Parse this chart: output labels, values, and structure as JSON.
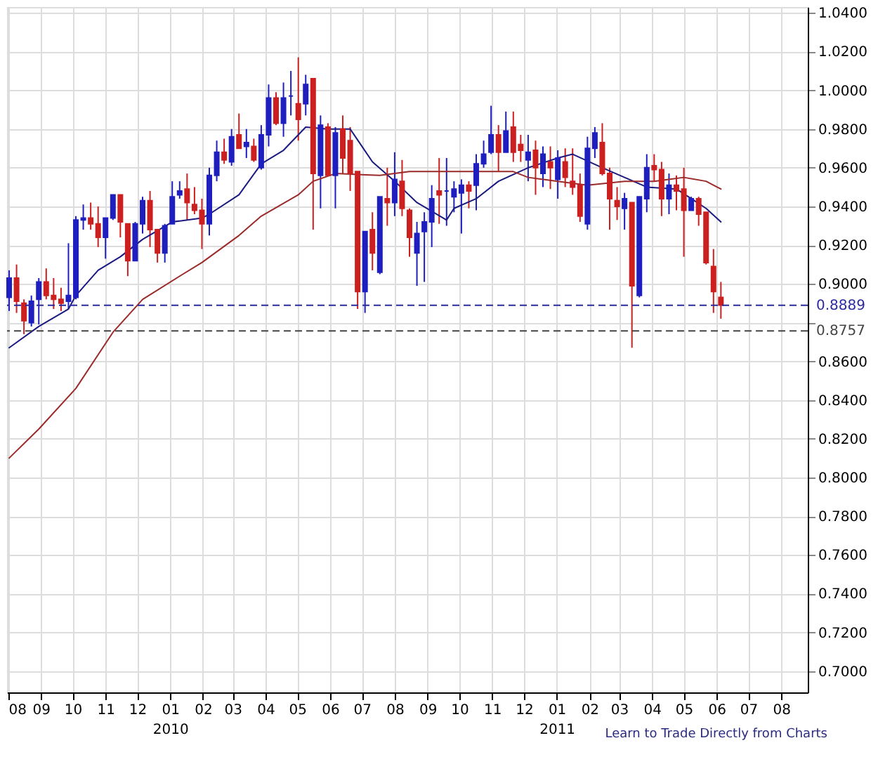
{
  "chart_data": {
    "type": "candlestick",
    "x": [
      "2009-08-02",
      "2009-08-09",
      "2009-08-16",
      "2009-08-23",
      "2009-08-30",
      "2009-09-06",
      "2009-09-13",
      "2009-09-20",
      "2009-09-27",
      "2009-10-04",
      "2009-10-11",
      "2009-10-18",
      "2009-10-25",
      "2009-11-01",
      "2009-11-08",
      "2009-11-15",
      "2009-11-22",
      "2009-11-29",
      "2009-12-06",
      "2009-12-13",
      "2009-12-20",
      "2009-12-27",
      "2010-01-03",
      "2010-01-10",
      "2010-01-17",
      "2010-01-24",
      "2010-01-31",
      "2010-02-07",
      "2010-02-14",
      "2010-02-21",
      "2010-02-28",
      "2010-03-07",
      "2010-03-14",
      "2010-03-21",
      "2010-03-28",
      "2010-04-04",
      "2010-04-11",
      "2010-04-18",
      "2010-04-25",
      "2010-05-02",
      "2010-05-09",
      "2010-05-16",
      "2010-05-23",
      "2010-05-30",
      "2010-06-06",
      "2010-06-13",
      "2010-06-20",
      "2010-06-27",
      "2010-07-04",
      "2010-07-11",
      "2010-07-18",
      "2010-07-25",
      "2010-08-01",
      "2010-08-08",
      "2010-08-15",
      "2010-08-22",
      "2010-08-29",
      "2010-09-05",
      "2010-09-12",
      "2010-09-19",
      "2010-09-26",
      "2010-10-03",
      "2010-10-10",
      "2010-10-17",
      "2010-10-24",
      "2010-10-31",
      "2010-11-07",
      "2010-11-14",
      "2010-11-21",
      "2010-11-28",
      "2010-12-05",
      "2010-12-12",
      "2010-12-19",
      "2010-12-26",
      "2011-01-02",
      "2011-01-09",
      "2011-01-16",
      "2011-01-23",
      "2011-01-30",
      "2011-02-06",
      "2011-02-13",
      "2011-02-20",
      "2011-02-27",
      "2011-03-06",
      "2011-03-13",
      "2011-03-20",
      "2011-03-27",
      "2011-04-03",
      "2011-04-10",
      "2011-04-17",
      "2011-04-24",
      "2011-05-01",
      "2011-05-08",
      "2011-05-15",
      "2011-05-22",
      "2011-05-29",
      "2011-06-05"
    ],
    "ohlc": [
      [
        0.893,
        0.907,
        0.886,
        0.903
      ],
      [
        0.903,
        0.91,
        0.885,
        0.891
      ],
      [
        0.89,
        0.892,
        0.874,
        0.881
      ],
      [
        0.88,
        0.894,
        0.878,
        0.891
      ],
      [
        0.892,
        0.903,
        0.879,
        0.901
      ],
      [
        0.901,
        0.908,
        0.892,
        0.894
      ],
      [
        0.894,
        0.903,
        0.887,
        0.892
      ],
      [
        0.892,
        0.898,
        0.886,
        0.89
      ],
      [
        0.891,
        0.921,
        0.887,
        0.894
      ],
      [
        0.893,
        0.935,
        0.892,
        0.933
      ],
      [
        0.933,
        0.941,
        0.928,
        0.934
      ],
      [
        0.934,
        0.942,
        0.928,
        0.931
      ],
      [
        0.931,
        0.94,
        0.919,
        0.924
      ],
      [
        0.924,
        0.934,
        0.913,
        0.934
      ],
      [
        0.934,
        0.946,
        0.933,
        0.946
      ],
      [
        0.946,
        0.946,
        0.924,
        0.932
      ],
      [
        0.931,
        0.931,
        0.904,
        0.912
      ],
      [
        0.912,
        0.932,
        0.912,
        0.931
      ],
      [
        0.931,
        0.945,
        0.926,
        0.943
      ],
      [
        0.943,
        0.948,
        0.919,
        0.928
      ],
      [
        0.928,
        0.928,
        0.911,
        0.916
      ],
      [
        0.916,
        0.931,
        0.911,
        0.93
      ],
      [
        0.931,
        0.953,
        0.931,
        0.945
      ],
      [
        0.946,
        0.953,
        0.944,
        0.948
      ],
      [
        0.949,
        0.957,
        0.933,
        0.942
      ],
      [
        0.941,
        0.95,
        0.936,
        0.938
      ],
      [
        0.938,
        0.944,
        0.918,
        0.931
      ],
      [
        0.931,
        0.96,
        0.925,
        0.956
      ],
      [
        0.956,
        0.974,
        0.953,
        0.968
      ],
      [
        0.968,
        0.975,
        0.962,
        0.964
      ],
      [
        0.963,
        0.98,
        0.961,
        0.976
      ],
      [
        0.977,
        0.988,
        0.97,
        0.97
      ],
      [
        0.971,
        0.98,
        0.965,
        0.973
      ],
      [
        0.971,
        0.975,
        0.963,
        0.964
      ],
      [
        0.96,
        0.982,
        0.959,
        0.977
      ],
      [
        0.977,
        1.003,
        0.971,
        0.996
      ],
      [
        0.996,
        0.999,
        0.982,
        0.983
      ],
      [
        0.983,
        1.004,
        0.976,
        0.996
      ],
      [
        0.997,
        1.01,
        0.987,
        0.997
      ],
      [
        0.993,
        1.017,
        0.974,
        0.985
      ],
      [
        0.993,
        1.008,
        0.987,
        1.003
      ],
      [
        1.006,
        1.006,
        0.928,
        0.957
      ],
      [
        0.956,
        0.987,
        0.939,
        0.982
      ],
      [
        0.981,
        0.983,
        0.956,
        0.956
      ],
      [
        0.956,
        0.981,
        0.939,
        0.978
      ],
      [
        0.98,
        0.987,
        0.957,
        0.965
      ],
      [
        0.974,
        0.981,
        0.948,
        0.957
      ],
      [
        0.958,
        0.958,
        0.887,
        0.896
      ],
      [
        0.896,
        0.927,
        0.885,
        0.927
      ],
      [
        0.928,
        0.937,
        0.907,
        0.916
      ],
      [
        0.906,
        0.945,
        0.905,
        0.945
      ],
      [
        0.944,
        0.96,
        0.93,
        0.942
      ],
      [
        0.942,
        0.968,
        0.935,
        0.954
      ],
      [
        0.953,
        0.964,
        0.935,
        0.939
      ],
      [
        0.938,
        0.939,
        0.914,
        0.924
      ],
      [
        0.916,
        0.932,
        0.899,
        0.926
      ],
      [
        0.927,
        0.937,
        0.901,
        0.932
      ],
      [
        0.932,
        0.951,
        0.919,
        0.944
      ],
      [
        0.948,
        0.965,
        0.931,
        0.946
      ],
      [
        0.948,
        0.965,
        0.93,
        0.948
      ],
      [
        0.945,
        0.953,
        0.937,
        0.949
      ],
      [
        0.947,
        0.954,
        0.926,
        0.951
      ],
      [
        0.951,
        0.953,
        0.939,
        0.948
      ],
      [
        0.951,
        0.967,
        0.938,
        0.962
      ],
      [
        0.962,
        0.974,
        0.96,
        0.967
      ],
      [
        0.968,
        0.992,
        0.967,
        0.977
      ],
      [
        0.977,
        0.982,
        0.958,
        0.968
      ],
      [
        0.968,
        0.989,
        0.968,
        0.979
      ],
      [
        0.981,
        0.989,
        0.963,
        0.968
      ],
      [
        0.972,
        0.977,
        0.963,
        0.969
      ],
      [
        0.964,
        0.977,
        0.953,
        0.968
      ],
      [
        0.969,
        0.974,
        0.946,
        0.96
      ],
      [
        0.957,
        0.971,
        0.95,
        0.967
      ],
      [
        0.963,
        0.971,
        0.949,
        0.96
      ],
      [
        0.954,
        0.969,
        0.944,
        0.965
      ],
      [
        0.963,
        0.97,
        0.95,
        0.955
      ],
      [
        0.953,
        0.97,
        0.946,
        0.95
      ],
      [
        0.951,
        0.957,
        0.932,
        0.935
      ],
      [
        0.931,
        0.976,
        0.928,
        0.97
      ],
      [
        0.97,
        0.981,
        0.965,
        0.978
      ],
      [
        0.973,
        0.983,
        0.956,
        0.957
      ],
      [
        0.957,
        0.96,
        0.928,
        0.944
      ],
      [
        0.943,
        0.95,
        0.933,
        0.94
      ],
      [
        0.939,
        0.947,
        0.928,
        0.944
      ],
      [
        0.942,
        0.942,
        0.867,
        0.899
      ],
      [
        0.894,
        0.945,
        0.893,
        0.945
      ],
      [
        0.944,
        0.967,
        0.937,
        0.96
      ],
      [
        0.961,
        0.967,
        0.953,
        0.959
      ],
      [
        0.959,
        0.963,
        0.935,
        0.944
      ],
      [
        0.944,
        0.957,
        0.936,
        0.951
      ],
      [
        0.951,
        0.956,
        0.938,
        0.948
      ],
      [
        0.949,
        0.96,
        0.914,
        0.938
      ],
      [
        0.938,
        0.945,
        0.938,
        0.944
      ],
      [
        0.944,
        0.945,
        0.93,
        0.936
      ],
      [
        0.937,
        0.937,
        0.91,
        0.911
      ],
      [
        0.909,
        0.918,
        0.885,
        0.896
      ],
      [
        0.893,
        0.901,
        0.882,
        0.889
      ]
    ],
    "colors": [
      "#1f1fbf",
      "#cc2020",
      "#cc2020",
      "#1f1fbf",
      "#1f1fbf",
      "#cc2020",
      "#cc2020",
      "#cc2020",
      "#1f1fbf",
      "#1f1fbf",
      "#1f1fbf",
      "#cc2020",
      "#cc2020",
      "#1f1fbf",
      "#1f1fbf",
      "#cc2020",
      "#cc2020",
      "#1f1fbf",
      "#1f1fbf",
      "#cc2020",
      "#cc2020",
      "#1f1fbf",
      "#1f1fbf",
      "#1f1fbf",
      "#cc2020",
      "#cc2020",
      "#cc2020",
      "#1f1fbf",
      "#1f1fbf",
      "#cc2020",
      "#1f1fbf",
      "#cc2020",
      "#1f1fbf",
      "#cc2020",
      "#1f1fbf",
      "#1f1fbf",
      "#cc2020",
      "#1f1fbf",
      "#1f1fbf",
      "#cc2020",
      "#1f1fbf",
      "#cc2020",
      "#1f1fbf",
      "#cc2020",
      "#1f1fbf",
      "#cc2020",
      "#cc2020",
      "#cc2020",
      "#1f1fbf",
      "#cc2020",
      "#1f1fbf",
      "#cc2020",
      "#1f1fbf",
      "#cc2020",
      "#cc2020",
      "#1f1fbf",
      "#1f1fbf",
      "#1f1fbf",
      "#cc2020",
      "#1f1fbf",
      "#1f1fbf",
      "#1f1fbf",
      "#cc2020",
      "#1f1fbf",
      "#1f1fbf",
      "#1f1fbf",
      "#cc2020",
      "#1f1fbf",
      "#cc2020",
      "#cc2020",
      "#1f1fbf",
      "#cc2020",
      "#1f1fbf",
      "#cc2020",
      "#1f1fbf",
      "#cc2020",
      "#cc2020",
      "#cc2020",
      "#1f1fbf",
      "#1f1fbf",
      "#cc2020",
      "#cc2020",
      "#cc2020",
      "#1f1fbf",
      "#cc2020",
      "#1f1fbf",
      "#1f1fbf",
      "#cc2020",
      "#cc2020",
      "#1f1fbf",
      "#cc2020",
      "#cc2020",
      "#1f1fbf",
      "#cc2020",
      "#cc2020",
      "#cc2020",
      "#cc2020"
    ],
    "series": [
      {
        "type": "line",
        "color": "#1a1a80",
        "x": [
          "2009-08-02",
          "2009-08-30",
          "2009-09-27",
          "2009-10-04",
          "2009-10-25",
          "2009-11-15",
          "2009-12-06",
          "2010-01-03",
          "2010-01-31",
          "2010-02-07",
          "2010-03-07",
          "2010-03-28",
          "2010-04-18",
          "2010-05-09",
          "2010-05-30",
          "2010-06-20",
          "2010-07-11",
          "2010-08-01",
          "2010-08-22",
          "2010-09-19",
          "2010-09-26",
          "2010-10-17",
          "2010-11-07",
          "2010-12-05",
          "2011-01-02",
          "2011-01-16",
          "2011-02-13",
          "2011-03-06",
          "2011-03-27",
          "2011-04-24",
          "2011-05-08",
          "2011-05-22",
          "2011-06-05"
        ],
        "values": [
          0.867,
          0.878,
          0.887,
          0.894,
          0.907,
          0.914,
          0.923,
          0.932,
          0.934,
          0.936,
          0.946,
          0.962,
          0.969,
          0.981,
          0.98,
          0.98,
          0.963,
          0.953,
          0.942,
          0.933,
          0.939,
          0.944,
          0.953,
          0.96,
          0.965,
          0.967,
          0.96,
          0.955,
          0.95,
          0.949,
          0.944,
          0.939,
          0.932
        ]
      },
      {
        "type": "line",
        "color": "#9b2a2a",
        "x": [
          "2009-08-02",
          "2009-08-30",
          "2009-10-04",
          "2009-11-08",
          "2009-12-06",
          "2010-01-10",
          "2010-01-31",
          "2010-03-07",
          "2010-03-28",
          "2010-05-02",
          "2010-05-16",
          "2010-06-06",
          "2010-07-18",
          "2010-08-15",
          "2010-10-03",
          "2010-11-21",
          "2010-12-05",
          "2011-01-02",
          "2011-01-30",
          "2011-03-06",
          "2011-04-03",
          "2011-05-01",
          "2011-05-22",
          "2011-06-05"
        ],
        "values": [
          0.81,
          0.825,
          0.846,
          0.875,
          0.892,
          0.904,
          0.911,
          0.925,
          0.935,
          0.946,
          0.953,
          0.957,
          0.956,
          0.958,
          0.958,
          0.958,
          0.955,
          0.953,
          0.951,
          0.953,
          0.953,
          0.955,
          0.953,
          0.949
        ]
      }
    ],
    "ref_lines": [
      {
        "axis": "y",
        "value": 0.8889,
        "label": "0.8889",
        "color": "#2a2aa0",
        "line_style": "dashed"
      },
      {
        "axis": "y",
        "value": 0.8757,
        "label": "0.8757",
        "color": "#444444",
        "line_style": "dashed"
      }
    ],
    "xlim": [
      "2009-07-31",
      "2011-08-26"
    ],
    "xticks": [
      {
        "value": "2009-08-01",
        "label": "08"
      },
      {
        "value": "2009-09-01",
        "label": "09"
      },
      {
        "value": "2009-10-01",
        "label": "10"
      },
      {
        "value": "2009-11-01",
        "label": "11"
      },
      {
        "value": "2009-12-01",
        "label": "12"
      },
      {
        "value": "2010-01-01",
        "label": "01\n2010"
      },
      {
        "value": "2010-02-01",
        "label": "02"
      },
      {
        "value": "2010-03-01",
        "label": "03"
      },
      {
        "value": "2010-04-01",
        "label": "04"
      },
      {
        "value": "2010-05-01",
        "label": "05"
      },
      {
        "value": "2010-06-01",
        "label": "06"
      },
      {
        "value": "2010-07-01",
        "label": "07"
      },
      {
        "value": "2010-08-01",
        "label": "08"
      },
      {
        "value": "2010-09-01",
        "label": "09"
      },
      {
        "value": "2010-10-01",
        "label": "10"
      },
      {
        "value": "2010-11-01",
        "label": "11"
      },
      {
        "value": "2010-12-01",
        "label": "12"
      },
      {
        "value": "2011-01-01",
        "label": "01\n2011"
      },
      {
        "value": "2011-02-01",
        "label": "02"
      },
      {
        "value": "2011-03-01",
        "label": "03"
      },
      {
        "value": "2011-04-01",
        "label": "04"
      },
      {
        "value": "2011-05-01",
        "label": "05"
      },
      {
        "value": "2011-06-01",
        "label": "06"
      },
      {
        "value": "2011-07-01",
        "label": "07"
      },
      {
        "value": "2011-08-01",
        "label": "08"
      }
    ],
    "ylim": [
      0.689,
      1.043
    ],
    "yticks": [
      {
        "value": 0.7,
        "label": "0.7000"
      },
      {
        "value": 0.72,
        "label": "0.7200"
      },
      {
        "value": 0.74,
        "label": "0.7400"
      },
      {
        "value": 0.76,
        "label": "0.7600"
      },
      {
        "value": 0.78,
        "label": "0.7800"
      },
      {
        "value": 0.8,
        "label": "0.8000"
      },
      {
        "value": 0.82,
        "label": "0.8200"
      },
      {
        "value": 0.84,
        "label": "0.8400"
      },
      {
        "value": 0.86,
        "label": "0.8600"
      },
      {
        "value": 0.88,
        "label": null
      },
      {
        "value": 0.9,
        "label": "0.9000"
      },
      {
        "value": 0.92,
        "label": "0.9200"
      },
      {
        "value": 0.94,
        "label": "0.9400"
      },
      {
        "value": 0.96,
        "label": "0.9600"
      },
      {
        "value": 0.98,
        "label": "0.9800"
      },
      {
        "value": 1.0,
        "label": "1.0000"
      },
      {
        "value": 1.02,
        "label": "1.0200"
      },
      {
        "value": 1.04,
        "label": "1.0400"
      }
    ],
    "grid": true,
    "annotations": [
      "Learn to Trade Directly from Charts"
    ]
  }
}
